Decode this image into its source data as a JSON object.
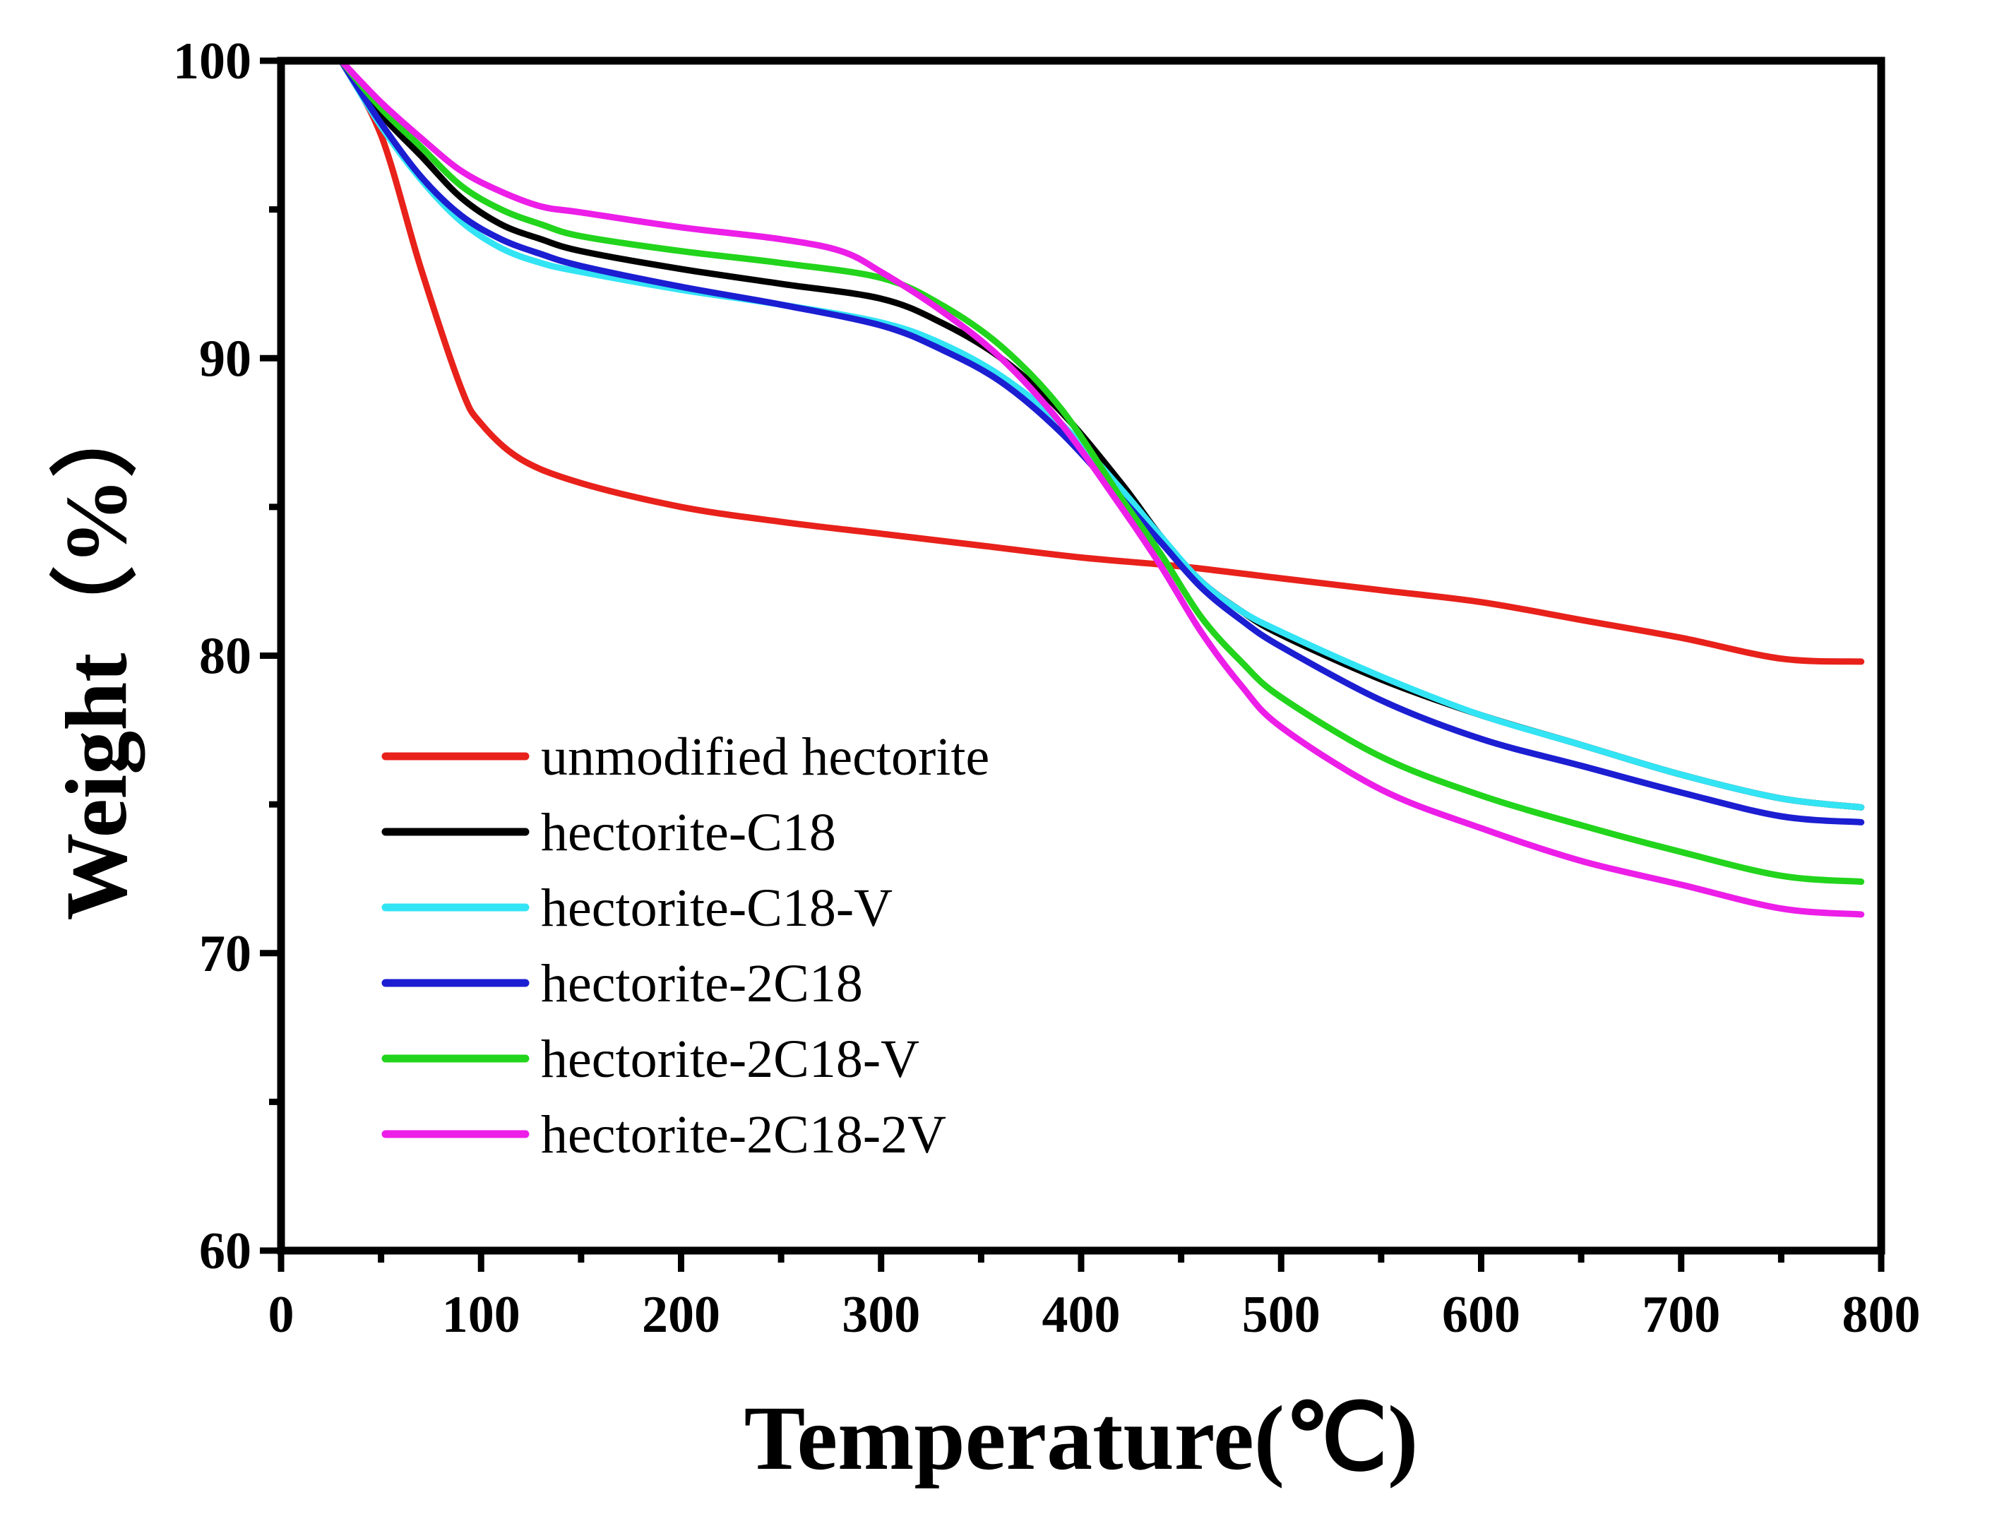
{
  "chart_data": {
    "type": "line",
    "xlabel": "Temperature(℃)",
    "ylabel": "Weight（%）",
    "xlim": [
      0,
      800
    ],
    "ylim": [
      60,
      100
    ],
    "xticks": [
      0,
      100,
      200,
      300,
      400,
      500,
      600,
      700,
      800
    ],
    "yticks": [
      60,
      70,
      80,
      90,
      100
    ],
    "xticks_labels": [
      "0",
      "100",
      "200",
      "300",
      "400",
      "500",
      "600",
      "700",
      "800"
    ],
    "yticks_labels": [
      "60",
      "70",
      "80",
      "90",
      "100"
    ],
    "grid": false,
    "legend_position": "center-left",
    "series": [
      {
        "name": "unmodified hectorite",
        "color": "#e8211b",
        "x": [
          30,
          50,
          70,
          90,
          100,
          120,
          150,
          200,
          250,
          300,
          350,
          400,
          450,
          500,
          550,
          600,
          650,
          700,
          750,
          790
        ],
        "y": [
          100,
          97.5,
          93,
          89,
          87.8,
          86.6,
          85.8,
          85.0,
          84.5,
          84.1,
          83.7,
          83.3,
          83.0,
          82.6,
          82.2,
          81.8,
          81.2,
          80.6,
          79.9,
          79.8
        ]
      },
      {
        "name": "hectorite-C18",
        "color": "#000000",
        "x": [
          30,
          50,
          70,
          90,
          110,
          130,
          150,
          200,
          250,
          300,
          330,
          360,
          390,
          420,
          440,
          460,
          480,
          500,
          550,
          600,
          650,
          700,
          750,
          790
        ],
        "y": [
          100,
          98.2,
          96.8,
          95.4,
          94.5,
          94.0,
          93.6,
          93.0,
          92.5,
          92.0,
          91.2,
          90.0,
          88.2,
          85.8,
          84.0,
          82.5,
          81.5,
          80.7,
          79.2,
          78.0,
          77.0,
          76.0,
          75.2,
          74.9
        ]
      },
      {
        "name": "hectorite-C18-V",
        "color": "#33e4f4",
        "x": [
          30,
          50,
          70,
          90,
          110,
          130,
          150,
          200,
          250,
          300,
          330,
          360,
          390,
          420,
          440,
          460,
          480,
          500,
          550,
          600,
          650,
          700,
          750,
          790
        ],
        "y": [
          100,
          97.8,
          96.0,
          94.6,
          93.7,
          93.2,
          92.9,
          92.3,
          91.8,
          91.2,
          90.5,
          89.4,
          87.8,
          85.6,
          84.0,
          82.5,
          81.5,
          80.8,
          79.3,
          78.0,
          77.0,
          76.0,
          75.2,
          74.9
        ]
      },
      {
        "name": "hectorite-2C18",
        "color": "#1c1ed2",
        "x": [
          30,
          50,
          70,
          90,
          110,
          130,
          150,
          200,
          250,
          300,
          330,
          360,
          390,
          420,
          440,
          460,
          480,
          500,
          550,
          600,
          650,
          700,
          750,
          790
        ],
        "y": [
          100,
          97.9,
          96.1,
          94.8,
          94.0,
          93.5,
          93.1,
          92.4,
          91.8,
          91.1,
          90.3,
          89.2,
          87.5,
          85.3,
          83.8,
          82.3,
          81.2,
          80.3,
          78.5,
          77.2,
          76.3,
          75.4,
          74.6,
          74.4
        ]
      },
      {
        "name": "hectorite-2C18-V",
        "color": "#22d41c",
        "x": [
          30,
          50,
          70,
          90,
          110,
          130,
          150,
          200,
          250,
          300,
          330,
          360,
          390,
          420,
          440,
          460,
          480,
          500,
          550,
          600,
          650,
          700,
          750,
          790
        ],
        "y": [
          100,
          98.4,
          97.1,
          95.8,
          95.0,
          94.5,
          94.1,
          93.6,
          93.2,
          92.7,
          91.8,
          90.4,
          88.3,
          85.3,
          83.4,
          81.3,
          79.8,
          78.6,
          76.6,
          75.3,
          74.3,
          73.4,
          72.6,
          72.4
        ]
      },
      {
        "name": "hectorite-2C18-2V",
        "color": "#ec1ee8",
        "x": [
          30,
          50,
          70,
          90,
          110,
          130,
          150,
          200,
          250,
          280,
          300,
          330,
          360,
          390,
          420,
          440,
          460,
          480,
          500,
          550,
          600,
          650,
          700,
          750,
          790
        ],
        "y": [
          100,
          98.6,
          97.4,
          96.3,
          95.6,
          95.1,
          94.9,
          94.4,
          94.0,
          93.6,
          92.9,
          91.6,
          90.0,
          87.8,
          85.0,
          83.0,
          80.8,
          79.0,
          77.6,
          75.5,
          74.2,
          73.1,
          72.3,
          71.5,
          71.3
        ]
      }
    ]
  }
}
